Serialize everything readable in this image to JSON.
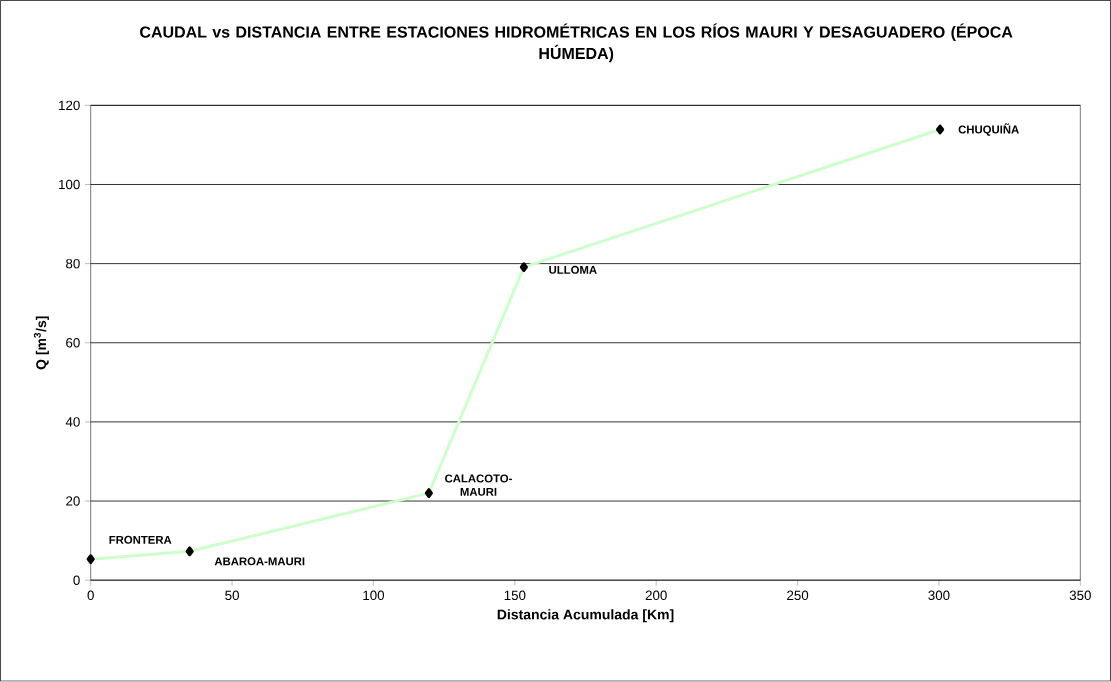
{
  "chart_data": {
    "type": "line",
    "title": "CAUDAL vs DISTANCIA ENTRE ESTACIONES HIDROMÉTRICAS EN LOS RÍOS MAURI Y DESAGUADERO (ÉPOCA HÚMEDA)",
    "xlabel": "Distancia Acumulada [Km]",
    "ylabel": "Q [m$^{3}$/s]",
    "x": [
      0,
      35,
      119.6,
      153.2,
      300.4
    ],
    "series": [
      {
        "color": "#ccffcc",
        "values": [
          5.3,
          7.3,
          22.0,
          79.1,
          113.9
        ]
      }
    ],
    "annotations": [
      {
        "text": "FRONTERA",
        "x": 0,
        "y": 5.3
      },
      {
        "text": "ABAROA-MAURI",
        "x": 35,
        "y": 7.3
      },
      {
        "text": "CALACOTO-MAURI",
        "x": 119.6,
        "y": 22.0
      },
      {
        "text": "ULLOMA",
        "x": 153.2,
        "y": 79.1
      },
      {
        "text": "CHUQUIÑA",
        "x": 300.4,
        "y": 113.9
      }
    ],
    "xlim": [
      0,
      350
    ],
    "xticks": [
      0,
      50,
      100,
      150,
      200,
      250,
      300,
      350
    ],
    "ylim": [
      0,
      120
    ],
    "yticks": [
      0,
      20,
      40,
      60,
      80,
      100,
      120
    ],
    "grid": "y",
    "marker": "diamond",
    "line_style": "solid"
  }
}
